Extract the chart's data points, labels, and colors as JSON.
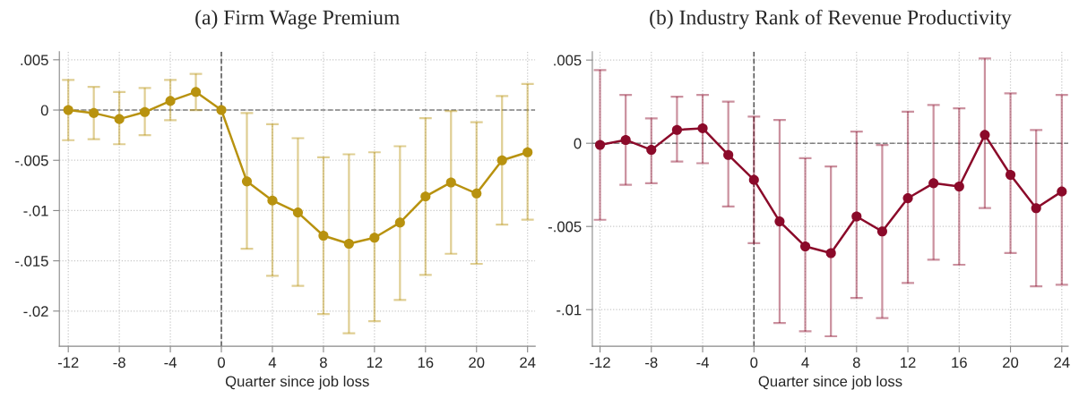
{
  "chart_data": [
    {
      "type": "line",
      "title": "(a) Firm Wage Premium",
      "xlabel": "Quarter since job loss",
      "x": [
        -12,
        -10,
        -8,
        -6,
        -4,
        -2,
        0,
        2,
        4,
        6,
        8,
        10,
        12,
        14,
        16,
        18,
        20,
        22,
        24
      ],
      "series": [
        {
          "color": "#b8920f",
          "values": [
            0,
            -0.0003,
            -0.0009,
            -0.0002,
            0.0009,
            0.0018,
            0,
            -0.0071,
            -0.009,
            -0.0102,
            -0.0125,
            -0.0133,
            -0.0127,
            -0.0112,
            -0.0086,
            -0.0072,
            -0.0083,
            -0.005,
            -0.0042
          ],
          "errors": [
            [
              -0.003,
              0.003
            ],
            [
              -0.0029,
              0.0023
            ],
            [
              -0.0034,
              0.0018
            ],
            [
              -0.0025,
              0.0022
            ],
            [
              -0.001,
              0.003
            ],
            [
              0,
              0.0036
            ],
            null,
            [
              -0.0138,
              -0.0003
            ],
            [
              -0.0165,
              -0.0014
            ],
            [
              -0.0175,
              -0.0028
            ],
            [
              -0.0203,
              -0.0047
            ],
            [
              -0.0222,
              -0.0044
            ],
            [
              -0.021,
              -0.0042
            ],
            [
              -0.0189,
              -0.0036
            ],
            [
              -0.0164,
              -0.0008
            ],
            [
              -0.0143,
              -0.0001
            ],
            [
              -0.0153,
              -0.0012
            ],
            [
              -0.0114,
              0.0014
            ],
            [
              -0.0109,
              0.0026
            ]
          ]
        }
      ],
      "xlim": [
        -12.7,
        24.6
      ],
      "xticks": [
        -12,
        -8,
        -4,
        0,
        4,
        8,
        12,
        16,
        20,
        24
      ],
      "ylim": [
        -0.0235,
        0.0058
      ],
      "yticks": [
        {
          "value": 0.005,
          "label": ".005"
        },
        0,
        {
          "value": -0.005,
          "label": "-.005"
        },
        {
          "value": -0.01,
          "label": "-.01"
        },
        {
          "value": -0.015,
          "label": "-.015"
        },
        {
          "value": -0.02,
          "label": "-.02"
        }
      ],
      "ref_lines": [
        {
          "axis": "y",
          "value": 0,
          "line_style": "dashed",
          "color": "#808080"
        },
        {
          "axis": "x",
          "value": 0,
          "line_style": "dashed",
          "color": "#555555"
        }
      ],
      "grid": true,
      "marker": "circle",
      "line_style": "solid"
    },
    {
      "type": "line",
      "title": "(b) Industry Rank of Revenue Productivity",
      "xlabel": "Quarter since job loss",
      "x": [
        -12,
        -10,
        -8,
        -6,
        -4,
        -2,
        0,
        2,
        4,
        6,
        8,
        10,
        12,
        14,
        16,
        18,
        20,
        22,
        24
      ],
      "series": [
        {
          "color": "#8b0a2a",
          "values": [
            -0.0001,
            0.0002,
            -0.0004,
            0.0008,
            0.0009,
            -0.0007,
            -0.0022,
            -0.0047,
            -0.0062,
            -0.0066,
            -0.0044,
            -0.0053,
            -0.0033,
            -0.0024,
            -0.0026,
            0.0005,
            -0.0019,
            -0.0039,
            -0.0029
          ],
          "errors": [
            [
              -0.0046,
              0.0044
            ],
            [
              -0.0025,
              0.0029
            ],
            [
              -0.0024,
              0.0015
            ],
            [
              -0.0011,
              0.0028
            ],
            [
              -0.0012,
              0.0029
            ],
            [
              -0.0038,
              0.0025
            ],
            [
              -0.006,
              0.0016
            ],
            [
              -0.0108,
              0.0014
            ],
            [
              -0.0113,
              -0.0009
            ],
            [
              -0.0116,
              -0.0014
            ],
            [
              -0.0093,
              0.0007
            ],
            [
              -0.0105,
              -0.0001
            ],
            [
              -0.0084,
              0.0019
            ],
            [
              -0.007,
              0.0023
            ],
            [
              -0.0073,
              0.0021
            ],
            [
              -0.0039,
              0.0051
            ],
            [
              -0.0066,
              0.003
            ],
            [
              -0.0086,
              0.0008
            ],
            [
              -0.0085,
              0.0029
            ]
          ]
        }
      ],
      "xlim": [
        -12.6,
        24.5
      ],
      "xticks": [
        -12,
        -8,
        -4,
        0,
        4,
        8,
        12,
        16,
        20,
        24
      ],
      "ylim": [
        -0.0122,
        0.0055
      ],
      "yticks": [
        {
          "value": 0.005,
          "label": ".005"
        },
        0,
        {
          "value": -0.005,
          "label": "-.005"
        },
        {
          "value": -0.01,
          "label": "-.01"
        }
      ],
      "ref_lines": [
        {
          "axis": "y",
          "value": 0,
          "line_style": "dashed",
          "color": "#808080"
        },
        {
          "axis": "x",
          "value": 0,
          "line_style": "dashed",
          "color": "#555555"
        }
      ],
      "grid": true,
      "marker": "circle",
      "line_style": "solid"
    }
  ]
}
